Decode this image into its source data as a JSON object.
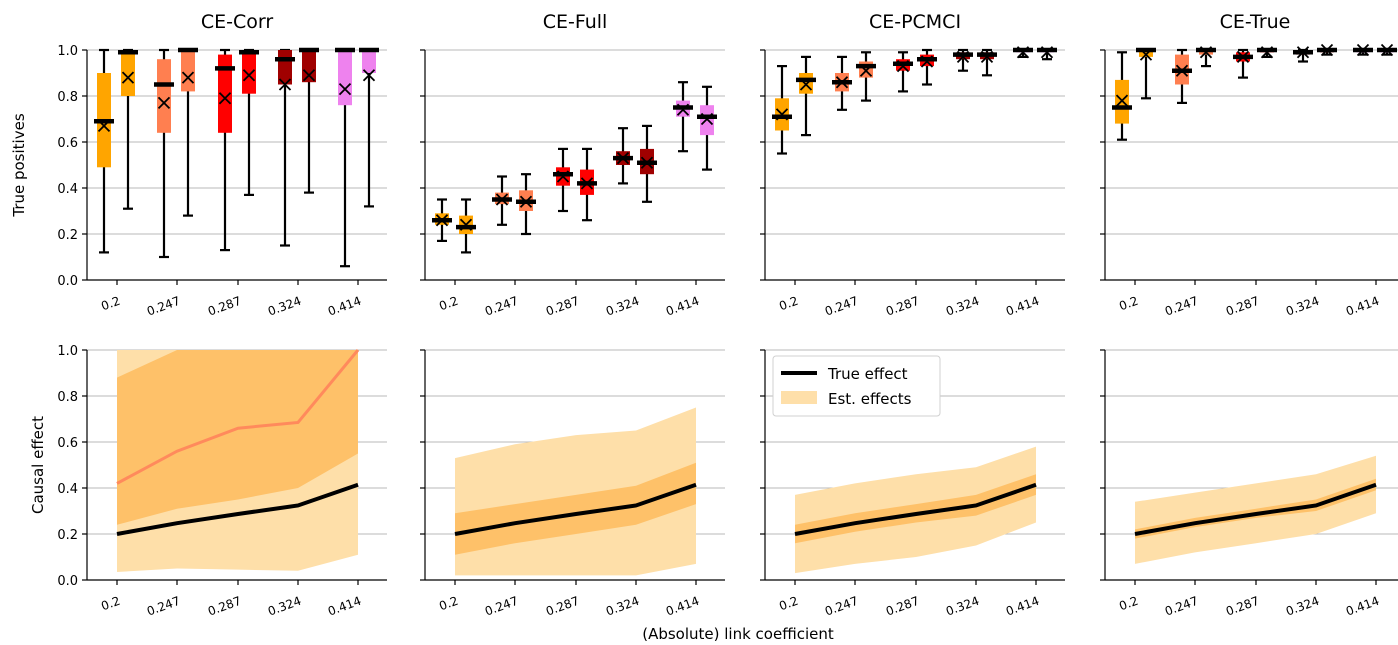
{
  "figure": {
    "shared_xlabel": "(Absolute) link coefficient",
    "row_ylabels": [
      "True positives",
      "Causal effect"
    ],
    "legend": {
      "true_effect": "True effect",
      "est_effects": "Est. effects"
    }
  },
  "colors": {
    "coef_colors": [
      "#ffa500",
      "#ff7f50",
      "#ff0000",
      "#a00000",
      "#ee82ee"
    ],
    "band_light": "#fedfa9",
    "band_mid": "#fec169",
    "mean_line": "#ff8a5c",
    "true_line": "#000000",
    "grid": "#a0a0a0"
  },
  "chart_data": [
    {
      "type": "box",
      "title": "CE-Corr",
      "xlabel": "",
      "ylabel": "True positives",
      "categories": [
        "0.2",
        "0.247",
        "0.287",
        "0.324",
        "0.414"
      ],
      "ylim": [
        0,
        1
      ],
      "yticks": [
        0.0,
        0.2,
        0.4,
        0.6,
        0.8,
        1.0
      ],
      "grid": true,
      "boxes": [
        {
          "coef": "0.2",
          "min": 0.12,
          "q1": 0.49,
          "median": 0.69,
          "q3": 0.9,
          "max": 1.0,
          "mean": 0.67
        },
        {
          "coef": "0.2",
          "min": 0.31,
          "q1": 0.8,
          "median": 0.99,
          "q3": 1.0,
          "max": 1.0,
          "mean": 0.88
        },
        {
          "coef": "0.247",
          "min": 0.1,
          "q1": 0.64,
          "median": 0.85,
          "q3": 0.96,
          "max": 1.0,
          "mean": 0.77
        },
        {
          "coef": "0.247",
          "min": 0.28,
          "q1": 0.82,
          "median": 1.0,
          "q3": 1.0,
          "max": 1.0,
          "mean": 0.88
        },
        {
          "coef": "0.287",
          "min": 0.13,
          "q1": 0.64,
          "median": 0.92,
          "q3": 0.98,
          "max": 1.0,
          "mean": 0.79
        },
        {
          "coef": "0.287",
          "min": 0.37,
          "q1": 0.81,
          "median": 0.99,
          "q3": 1.0,
          "max": 1.0,
          "mean": 0.89
        },
        {
          "coef": "0.324",
          "min": 0.15,
          "q1": 0.85,
          "median": 0.96,
          "q3": 1.0,
          "max": 1.0,
          "mean": 0.85
        },
        {
          "coef": "0.324",
          "min": 0.38,
          "q1": 0.86,
          "median": 1.0,
          "q3": 1.0,
          "max": 1.0,
          "mean": 0.89
        },
        {
          "coef": "0.414",
          "min": 0.06,
          "q1": 0.76,
          "median": 1.0,
          "q3": 1.0,
          "max": 1.0,
          "mean": 0.83
        },
        {
          "coef": "0.414",
          "min": 0.32,
          "q1": 0.9,
          "median": 1.0,
          "q3": 1.0,
          "max": 1.0,
          "mean": 0.89
        }
      ]
    },
    {
      "type": "box",
      "title": "CE-Full",
      "xlabel": "",
      "ylabel": "",
      "categories": [
        "0.2",
        "0.247",
        "0.287",
        "0.324",
        "0.414"
      ],
      "ylim": [
        0,
        1
      ],
      "yticks": [
        0.0,
        0.2,
        0.4,
        0.6,
        0.8,
        1.0
      ],
      "grid": true,
      "boxes": [
        {
          "coef": "0.2",
          "min": 0.17,
          "q1": 0.24,
          "median": 0.26,
          "q3": 0.29,
          "max": 0.35,
          "mean": 0.26
        },
        {
          "coef": "0.2",
          "min": 0.12,
          "q1": 0.2,
          "median": 0.23,
          "q3": 0.28,
          "max": 0.35,
          "mean": 0.24
        },
        {
          "coef": "0.247",
          "min": 0.24,
          "q1": 0.33,
          "median": 0.35,
          "q3": 0.38,
          "max": 0.45,
          "mean": 0.35
        },
        {
          "coef": "0.247",
          "min": 0.2,
          "q1": 0.3,
          "median": 0.34,
          "q3": 0.39,
          "max": 0.46,
          "mean": 0.34
        },
        {
          "coef": "0.287",
          "min": 0.3,
          "q1": 0.41,
          "median": 0.46,
          "q3": 0.49,
          "max": 0.57,
          "mean": 0.45
        },
        {
          "coef": "0.287",
          "min": 0.26,
          "q1": 0.37,
          "median": 0.42,
          "q3": 0.48,
          "max": 0.57,
          "mean": 0.42
        },
        {
          "coef": "0.324",
          "min": 0.42,
          "q1": 0.5,
          "median": 0.53,
          "q3": 0.56,
          "max": 0.66,
          "mean": 0.53
        },
        {
          "coef": "0.324",
          "min": 0.34,
          "q1": 0.46,
          "median": 0.51,
          "q3": 0.57,
          "max": 0.67,
          "mean": 0.51
        },
        {
          "coef": "0.414",
          "min": 0.56,
          "q1": 0.71,
          "median": 0.75,
          "q3": 0.78,
          "max": 0.86,
          "mean": 0.74
        },
        {
          "coef": "0.414",
          "min": 0.48,
          "q1": 0.63,
          "median": 0.71,
          "q3": 0.76,
          "max": 0.84,
          "mean": 0.7
        }
      ]
    },
    {
      "type": "box",
      "title": "CE-PCMCI",
      "xlabel": "",
      "ylabel": "",
      "categories": [
        "0.2",
        "0.247",
        "0.287",
        "0.324",
        "0.414"
      ],
      "ylim": [
        0,
        1
      ],
      "yticks": [
        0.0,
        0.2,
        0.4,
        0.6,
        0.8,
        1.0
      ],
      "grid": true,
      "boxes": [
        {
          "coef": "0.2",
          "min": 0.55,
          "q1": 0.65,
          "median": 0.71,
          "q3": 0.79,
          "max": 0.93,
          "mean": 0.72
        },
        {
          "coef": "0.2",
          "min": 0.63,
          "q1": 0.81,
          "median": 0.87,
          "q3": 0.9,
          "max": 0.97,
          "mean": 0.85
        },
        {
          "coef": "0.247",
          "min": 0.74,
          "q1": 0.82,
          "median": 0.86,
          "q3": 0.9,
          "max": 0.97,
          "mean": 0.86
        },
        {
          "coef": "0.247",
          "min": 0.78,
          "q1": 0.88,
          "median": 0.93,
          "q3": 0.95,
          "max": 0.99,
          "mean": 0.91
        },
        {
          "coef": "0.287",
          "min": 0.82,
          "q1": 0.91,
          "median": 0.94,
          "q3": 0.96,
          "max": 0.99,
          "mean": 0.93
        },
        {
          "coef": "0.287",
          "min": 0.85,
          "q1": 0.93,
          "median": 0.96,
          "q3": 0.98,
          "max": 1.0,
          "mean": 0.95
        },
        {
          "coef": "0.324",
          "min": 0.91,
          "q1": 0.96,
          "median": 0.98,
          "q3": 0.99,
          "max": 1.0,
          "mean": 0.97
        },
        {
          "coef": "0.324",
          "min": 0.89,
          "q1": 0.96,
          "median": 0.98,
          "q3": 0.99,
          "max": 1.0,
          "mean": 0.97
        },
        {
          "coef": "0.414",
          "min": 0.97,
          "q1": 0.99,
          "median": 1.0,
          "q3": 1.0,
          "max": 1.0,
          "mean": 0.99
        },
        {
          "coef": "0.414",
          "min": 0.96,
          "q1": 0.99,
          "median": 1.0,
          "q3": 1.0,
          "max": 1.0,
          "mean": 0.99
        }
      ]
    },
    {
      "type": "box",
      "title": "CE-True",
      "xlabel": "",
      "ylabel": "",
      "categories": [
        "0.2",
        "0.247",
        "0.287",
        "0.324",
        "0.414"
      ],
      "ylim": [
        0,
        1
      ],
      "yticks": [
        0.0,
        0.2,
        0.4,
        0.6,
        0.8,
        1.0
      ],
      "grid": true,
      "boxes": [
        {
          "coef": "0.2",
          "min": 0.61,
          "q1": 0.68,
          "median": 0.75,
          "q3": 0.87,
          "max": 0.99,
          "mean": 0.78
        },
        {
          "coef": "0.2",
          "min": 0.79,
          "q1": 0.97,
          "median": 1.0,
          "q3": 1.0,
          "max": 1.0,
          "mean": 0.98
        },
        {
          "coef": "0.247",
          "min": 0.77,
          "q1": 0.85,
          "median": 0.91,
          "q3": 0.98,
          "max": 1.0,
          "mean": 0.91
        },
        {
          "coef": "0.247",
          "min": 0.93,
          "q1": 0.98,
          "median": 1.0,
          "q3": 1.0,
          "max": 1.0,
          "mean": 0.99
        },
        {
          "coef": "0.287",
          "min": 0.88,
          "q1": 0.95,
          "median": 0.97,
          "q3": 0.99,
          "max": 1.0,
          "mean": 0.97
        },
        {
          "coef": "0.287",
          "min": 0.97,
          "q1": 0.99,
          "median": 1.0,
          "q3": 1.0,
          "max": 1.0,
          "mean": 0.99
        },
        {
          "coef": "0.324",
          "min": 0.95,
          "q1": 0.98,
          "median": 0.99,
          "q3": 1.0,
          "max": 1.0,
          "mean": 0.99
        },
        {
          "coef": "0.324",
          "min": 0.98,
          "q1": 0.99,
          "median": 1.0,
          "q3": 1.0,
          "max": 1.0,
          "mean": 1.0
        },
        {
          "coef": "0.414",
          "min": 0.98,
          "q1": 0.99,
          "median": 1.0,
          "q3": 1.0,
          "max": 1.0,
          "mean": 1.0
        },
        {
          "coef": "0.414",
          "min": 0.98,
          "q1": 0.99,
          "median": 1.0,
          "q3": 1.0,
          "max": 1.0,
          "mean": 1.0
        }
      ]
    },
    {
      "type": "area",
      "title": "",
      "xlabel": "",
      "ylabel": "Causal effect",
      "x": [
        0.2,
        0.247,
        0.287,
        0.324,
        0.414
      ],
      "categories": [
        "0.2",
        "0.247",
        "0.287",
        "0.324",
        "0.414"
      ],
      "ylim": [
        0,
        1
      ],
      "yticks": [
        0.0,
        0.2,
        0.4,
        0.6,
        0.8,
        1.0
      ],
      "grid": true,
      "true_effect": [
        0.2,
        0.247,
        0.287,
        0.324,
        0.414
      ],
      "outer_band": {
        "lower": [
          0.035,
          0.05,
          0.045,
          0.04,
          0.11
        ],
        "upper": [
          1.0,
          1.0,
          1.0,
          1.0,
          1.0
        ]
      },
      "inner_band": {
        "lower": [
          0.24,
          0.31,
          0.35,
          0.4,
          0.55
        ],
        "upper": [
          0.88,
          1.0,
          1.0,
          1.0,
          1.0
        ]
      },
      "mean_line": [
        0.42,
        0.56,
        0.66,
        0.685,
        1.0
      ]
    },
    {
      "type": "area",
      "title": "",
      "xlabel": "",
      "ylabel": "",
      "x": [
        0.2,
        0.247,
        0.287,
        0.324,
        0.414
      ],
      "categories": [
        "0.2",
        "0.247",
        "0.287",
        "0.324",
        "0.414"
      ],
      "ylim": [
        0,
        1
      ],
      "yticks": [
        0.0,
        0.2,
        0.4,
        0.6,
        0.8,
        1.0
      ],
      "grid": true,
      "true_effect": [
        0.2,
        0.247,
        0.287,
        0.324,
        0.414
      ],
      "outer_band": {
        "lower": [
          0.02,
          0.02,
          0.02,
          0.02,
          0.07
        ],
        "upper": [
          0.53,
          0.59,
          0.63,
          0.65,
          0.75
        ]
      },
      "inner_band": {
        "lower": [
          0.11,
          0.16,
          0.2,
          0.24,
          0.33
        ],
        "upper": [
          0.29,
          0.33,
          0.37,
          0.41,
          0.51
        ]
      }
    },
    {
      "type": "area",
      "title": "",
      "xlabel": "",
      "ylabel": "",
      "x": [
        0.2,
        0.247,
        0.287,
        0.324,
        0.414
      ],
      "categories": [
        "0.2",
        "0.247",
        "0.287",
        "0.324",
        "0.414"
      ],
      "ylim": [
        0,
        1
      ],
      "yticks": [
        0.0,
        0.2,
        0.4,
        0.6,
        0.8,
        1.0
      ],
      "grid": true,
      "legend": {
        "entries": [
          "True effect",
          "Est. effects"
        ],
        "position": "upper-left"
      },
      "true_effect": [
        0.2,
        0.247,
        0.287,
        0.324,
        0.414
      ],
      "outer_band": {
        "lower": [
          0.03,
          0.07,
          0.1,
          0.15,
          0.25
        ],
        "upper": [
          0.37,
          0.42,
          0.46,
          0.49,
          0.58
        ]
      },
      "inner_band": {
        "lower": [
          0.16,
          0.21,
          0.25,
          0.28,
          0.37
        ],
        "upper": [
          0.24,
          0.29,
          0.33,
          0.37,
          0.46
        ]
      }
    },
    {
      "type": "area",
      "title": "",
      "xlabel": "",
      "ylabel": "",
      "x": [
        0.2,
        0.247,
        0.287,
        0.324,
        0.414
      ],
      "categories": [
        "0.2",
        "0.247",
        "0.287",
        "0.324",
        "0.414"
      ],
      "ylim": [
        0,
        1
      ],
      "yticks": [
        0.0,
        0.2,
        0.4,
        0.6,
        0.8,
        1.0
      ],
      "grid": true,
      "true_effect": [
        0.2,
        0.247,
        0.287,
        0.324,
        0.414
      ],
      "outer_band": {
        "lower": [
          0.07,
          0.12,
          0.16,
          0.2,
          0.29
        ],
        "upper": [
          0.34,
          0.38,
          0.42,
          0.46,
          0.54
        ]
      },
      "inner_band": {
        "lower": [
          0.18,
          0.23,
          0.27,
          0.3,
          0.39
        ],
        "upper": [
          0.22,
          0.27,
          0.31,
          0.35,
          0.44
        ]
      }
    }
  ]
}
